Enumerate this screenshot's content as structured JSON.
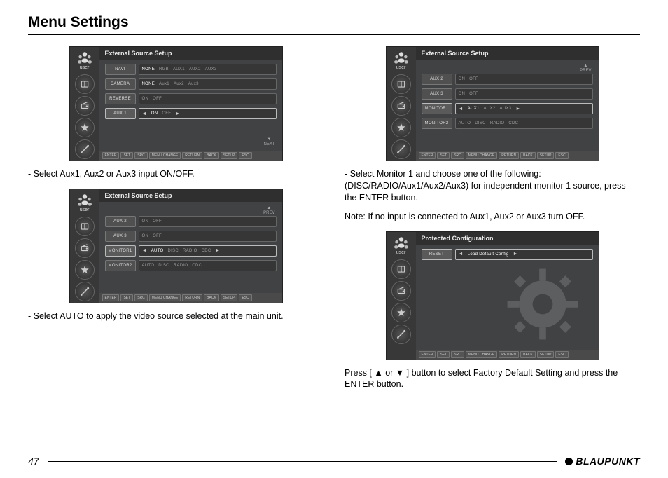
{
  "page_title": "Menu Settings",
  "page_number": "47",
  "brand": "BLAUPUNKT",
  "user_label": "user",
  "screens": {
    "s1": {
      "title": "External Source Setup",
      "nav": {
        "type": "next",
        "label": "NEXT"
      },
      "highlighted_row": 3,
      "rows": [
        {
          "label": "NAVI",
          "options": [
            "NONE",
            "RGB",
            "AUX1",
            "AUX2",
            "AUX3"
          ],
          "selected": 0
        },
        {
          "label": "CAMERA",
          "options": [
            "NONE",
            "Aux1",
            "Aux2",
            "Aux3"
          ],
          "selected": 0
        },
        {
          "label": "REVERSE",
          "options": [
            "ON",
            "OFF"
          ],
          "selected": -1
        },
        {
          "label": "AUX 1",
          "options": [
            "ON",
            "OFF"
          ],
          "selected": 0,
          "arrows": true
        }
      ]
    },
    "s2": {
      "title": "External Source Setup",
      "nav": {
        "type": "prev",
        "label": "PREV"
      },
      "highlighted_row": 2,
      "rows": [
        {
          "label": "AUX 2",
          "options": [
            "ON",
            "OFF"
          ],
          "selected": -1
        },
        {
          "label": "AUX 3",
          "options": [
            "ON",
            "OFF"
          ],
          "selected": -1
        },
        {
          "label": "MONITOR1",
          "options": [
            "AUTO",
            "DISC",
            "RADIO",
            "CDC"
          ],
          "selected": 0,
          "arrows": true
        },
        {
          "label": "MONITOR2",
          "options": [
            "AUTO",
            "DISC",
            "RADIO",
            "CDC"
          ],
          "selected": -1
        }
      ]
    },
    "s3": {
      "title": "External Source Setup",
      "nav": {
        "type": "prev",
        "label": "PREV"
      },
      "highlighted_row": 2,
      "rows": [
        {
          "label": "AUX 2",
          "options": [
            "ON",
            "OFF"
          ],
          "selected": -1
        },
        {
          "label": "AUX 3",
          "options": [
            "ON",
            "OFF"
          ],
          "selected": -1
        },
        {
          "label": "MONITOR1",
          "options": [
            "AUX1",
            "AUX2",
            "AUX3"
          ],
          "selected": 0,
          "arrows": true
        },
        {
          "label": "MONITOR2",
          "options": [
            "AUTO",
            "DISC",
            "RADIO",
            "CDC"
          ],
          "selected": -1
        }
      ]
    },
    "s4": {
      "title": "Protected Configuration",
      "nav": null,
      "highlighted_row": 0,
      "rows": [
        {
          "label": "RESET",
          "options": [
            "Load Default Config"
          ],
          "selected": 0,
          "arrows": true
        }
      ],
      "gear_bg": true
    }
  },
  "bottom_bar": [
    {
      "k": "ENTER",
      "v": "SET"
    },
    {
      "k": "SRC",
      "v": "MENU CHANGE"
    },
    {
      "k": "RETURN",
      "v": "BACK"
    },
    {
      "k": "SETUP",
      "v": "ESC"
    }
  ],
  "texts": {
    "t1": "- Select Aux1, Aux2 or Aux3 input ON/OFF.",
    "t2": "- Select AUTO to apply the video source selected at the main unit.",
    "t3a": "- Select Monitor 1 and choose one of the following: (DISC/RADIO/Aux1/Aux2/Aux3) for independent monitor 1 source, press the ENTER button.",
    "t3b": "Note: If no input is connected to Aux1, Aux2 or Aux3 turn OFF.",
    "t4": "Press [ ▲ or ▼ ] button to select Factory Default Setting and press the ENTER button."
  },
  "side_icons": [
    "book",
    "radio",
    "star",
    "tools"
  ]
}
